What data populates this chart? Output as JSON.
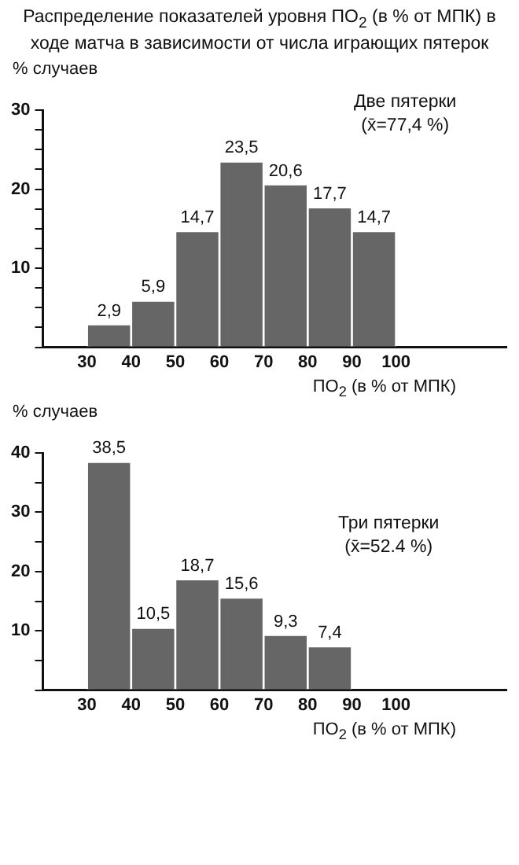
{
  "chart_data": [
    {
      "type": "histogram",
      "title": "Распределение показателей уровня ПО$_{2}$ (в % от МПК) в ходе матча в зависимости от числа играющих пятерок",
      "ylabel": "% случаев",
      "xlabel": "ПО$_{2}$ (в % от МПК)",
      "bins": [
        30,
        40,
        50,
        60,
        70,
        80,
        90,
        100
      ],
      "values": [
        2.9,
        5.9,
        14.7,
        23.5,
        20.6,
        17.7,
        14.7
      ],
      "value_labels": [
        "2,9",
        "5,9",
        "14,7",
        "23,5",
        "20,6",
        "17,7",
        "14,7"
      ],
      "color": "#666666",
      "xlim": [
        20,
        125
      ],
      "xticks": [
        30,
        40,
        50,
        60,
        70,
        80,
        90,
        100
      ],
      "ylim": [
        0,
        30
      ],
      "yticks": [
        {
          "value": 0,
          "label": null
        },
        {
          "value": 2.5,
          "label": null
        },
        {
          "value": 5,
          "label": null
        },
        {
          "value": 7.5,
          "label": null
        },
        10,
        {
          "value": 12.5,
          "label": null
        },
        {
          "value": 15,
          "label": null
        },
        {
          "value": 17.5,
          "label": null
        },
        20,
        {
          "value": 22.5,
          "label": null
        },
        {
          "value": 25,
          "label": null
        },
        {
          "value": 27.5,
          "label": null
        },
        30
      ],
      "annotations": [
        "Две пятерки",
        "(x̄=77,4 %)"
      ],
      "grid": false,
      "legend": false
    },
    {
      "type": "histogram",
      "ylabel": "% случаев",
      "xlabel": "ПО$_{2}$ (в % от МПК)",
      "bins": [
        30,
        40,
        50,
        60,
        70,
        80,
        90
      ],
      "values": [
        38.5,
        10.5,
        18.7,
        15.6,
        9.3,
        7.4
      ],
      "value_labels": [
        "38,5",
        "10,5",
        "18,7",
        "15,6",
        "9,3",
        "7,4"
      ],
      "color": "#666666",
      "xlim": [
        20,
        125
      ],
      "xticks": [
        30,
        40,
        50,
        60,
        70,
        80,
        90,
        100
      ],
      "ylim": [
        0,
        40
      ],
      "yticks": [
        {
          "value": 0,
          "label": null
        },
        {
          "value": 5,
          "label": null
        },
        10,
        {
          "value": 15,
          "label": null
        },
        20,
        {
          "value": 25,
          "label": null
        },
        30,
        {
          "value": 35,
          "label": null
        },
        40
      ],
      "annotations": [
        "Три пятерки",
        "(x̄=52.4 %)"
      ],
      "grid": false,
      "legend": false
    }
  ]
}
